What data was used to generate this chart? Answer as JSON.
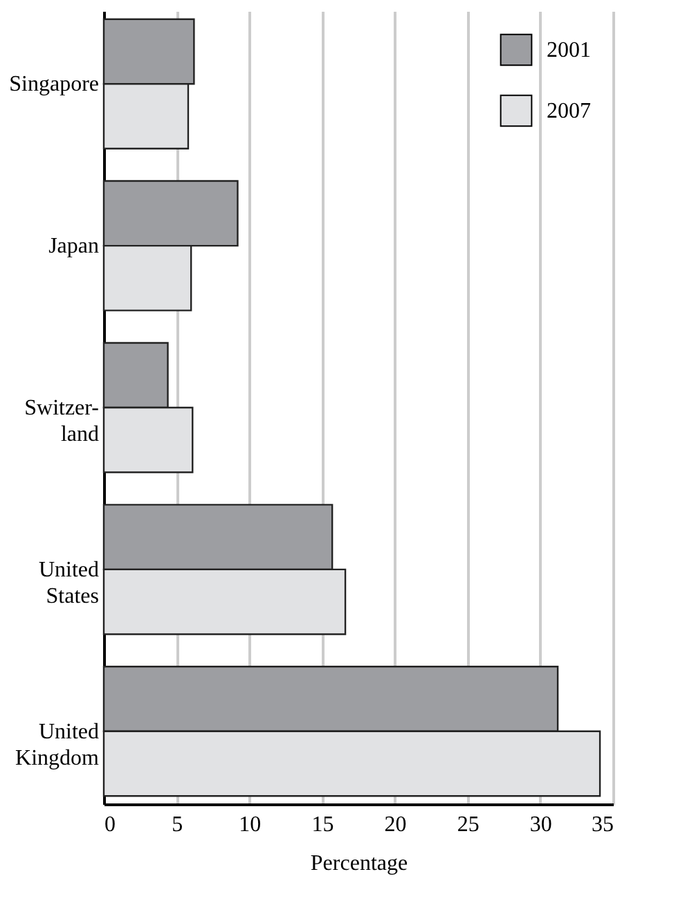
{
  "chart_data": {
    "type": "bar",
    "orientation": "horizontal",
    "xlabel": "Percentage",
    "categories": [
      "Singapore",
      "Japan",
      "Switzer-\nland",
      "United\nStates",
      "United\nKingdom"
    ],
    "series": [
      {
        "name": "2001",
        "color": "#9d9ea2",
        "values": [
          6.2,
          9.2,
          4.4,
          15.7,
          31.2
        ]
      },
      {
        "name": "2007",
        "color": "#e1e2e4",
        "values": [
          5.8,
          6.0,
          6.1,
          16.6,
          34.1
        ]
      }
    ],
    "xlim": [
      0,
      35
    ],
    "xticks": [
      0,
      5,
      10,
      15,
      20,
      25,
      30,
      35
    ],
    "grid": "x",
    "legend": "top right"
  }
}
